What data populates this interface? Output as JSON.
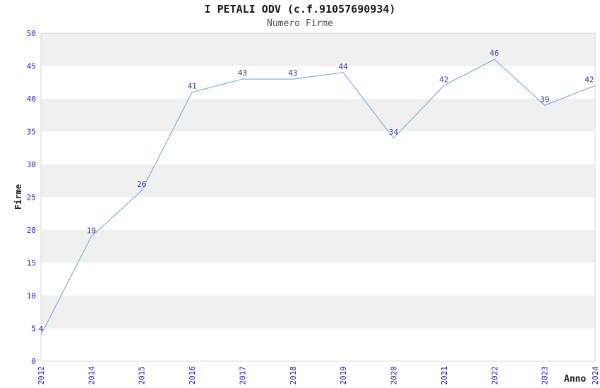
{
  "chart_data": {
    "type": "line",
    "title": "I PETALI ODV (c.f.91057690934)",
    "subtitle": "Numero Firme",
    "xlabel": "Anno",
    "ylabel": "Firme",
    "categories": [
      "2012",
      "2014",
      "2015",
      "2016",
      "2017",
      "2018",
      "2019",
      "2020",
      "2021",
      "2022",
      "2023",
      "2024"
    ],
    "values": [
      4,
      19,
      26,
      41,
      43,
      43,
      44,
      34,
      42,
      46,
      39,
      42
    ],
    "ylim": [
      0,
      50
    ],
    "ytick_step": 5,
    "yticks": [
      0,
      5,
      10,
      15,
      20,
      25,
      30,
      35,
      40,
      45,
      50
    ],
    "grid": "alternating-horizontal-bands",
    "legend_position": "none",
    "data_labels_visible": true,
    "colors": {
      "line": "#7cb0e3",
      "tick_label": "#2222cc",
      "data_label": "#333399",
      "band": "#f0f0f0",
      "plot_border": "#d9d9d9",
      "title": "#1a1a1a",
      "subtitle": "#4d4d4d",
      "axis_title": "#1a1a1a",
      "background": "#ffffff"
    }
  }
}
